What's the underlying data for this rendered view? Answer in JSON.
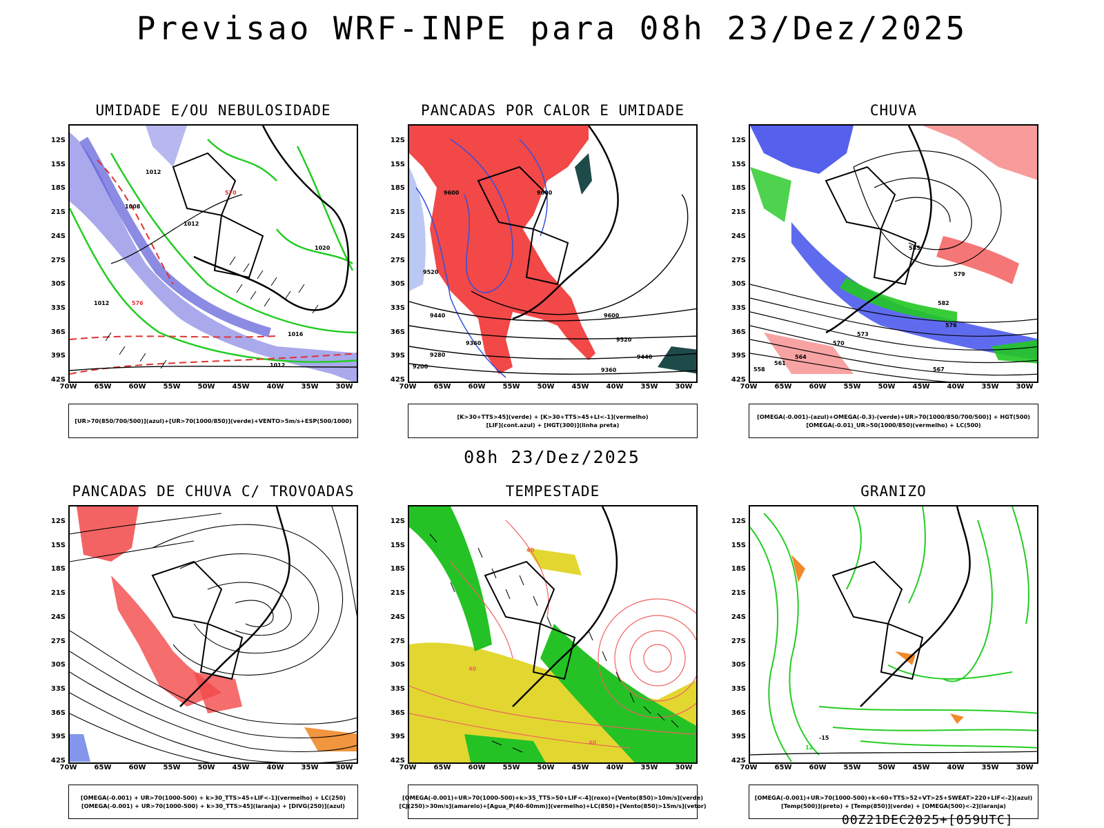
{
  "main_title": "Previsao WRF-INPE  para 08h 23/Dez/2025",
  "mid_title": "08h 23/Dez/2025",
  "footer": "00Z21DEC2025+[059UTC]",
  "lat_labels": [
    "12S",
    "15S",
    "18S",
    "21S",
    "24S",
    "27S",
    "30S",
    "33S",
    "36S",
    "39S",
    "42S"
  ],
  "lon_labels": [
    "70W",
    "65W",
    "60W",
    "55W",
    "50W",
    "45W",
    "40W",
    "35W",
    "30W"
  ],
  "panels": [
    {
      "title": "UMIDADE E/OU NEBULOSIDADE",
      "legend": [
        "[UR>70(850/700/500)](azul)+[UR>70(1000/850)](verde)+VENTO>5m/s+ESP(500/1000)"
      ],
      "contour_labels": [
        "1012",
        "1008",
        "1012",
        "1020",
        "1012",
        "1016",
        "1012",
        "570",
        "576"
      ]
    },
    {
      "title": "PANCADAS POR CALOR E UMIDADE",
      "legend": [
        "[K>30+TTS>45](verde)  +  [K>30+TTS>45+LI<-1](vermelho)",
        "[LIF](cont.azul)  +  [HGT(300)](linha preta)"
      ],
      "contour_labels": [
        "9600",
        "9600",
        "9520",
        "9440",
        "9600",
        "9520",
        "9360",
        "9280",
        "9200",
        "9440",
        "9360"
      ]
    },
    {
      "title": "CHUVA",
      "legend": [
        "[OMEGA(-0.001)-(azul)+OMEGA(-0.3)-(verde)+UR>70(1000/850/700/500)]  +  HGT(500)",
        "[OMEGA(-0.01)_UR>50(1000/850)(vermelho)  +  LC(500)"
      ],
      "contour_labels": [
        "585",
        "582",
        "579",
        "576",
        "573",
        "570",
        "567",
        "564",
        "561",
        "558"
      ]
    },
    {
      "title": "PANCADAS DE CHUVA C/ TROVOADAS",
      "legend": [
        "[OMEGA(-0.001)  +  UR>70(1000-500)  +  k>30_TTS>45+LIF<-1](vermelho)  +  LC(250)",
        "[OMEGA(-0.001)  +  UR>70(1000-500)  +  k>30_TTS>45](laranja)  +  [DIVG(250)](azul)"
      ],
      "contour_labels": []
    },
    {
      "title": "TEMPESTADE",
      "legend": [
        "[OMEGA(-0.001)+UR>70(1000-500)+k>35_TTS>50+LIF<-4](roxo)+[Vento(850)>10m/s](verde)",
        "[CJ(250)>30m/s](amarelo)+[Agua_P(40-60mm)](vermelho)+LC(850)+[Vento(850)>15m/s](vetor)"
      ],
      "contour_labels": [
        "40",
        "40",
        "40"
      ]
    },
    {
      "title": "GRANIZO",
      "legend": [
        "[OMEGA(-0.001)+UR>70(1000-500)+k<60+TTS>52+VT>25+SWEAT>220+LIF<-2](azul)",
        "[Temp(500)](preto)  +  [Temp(850)](verde)  +  [OMEGA(500)<-2](laranja)"
      ],
      "contour_labels": [
        "-15",
        "12"
      ]
    }
  ]
}
